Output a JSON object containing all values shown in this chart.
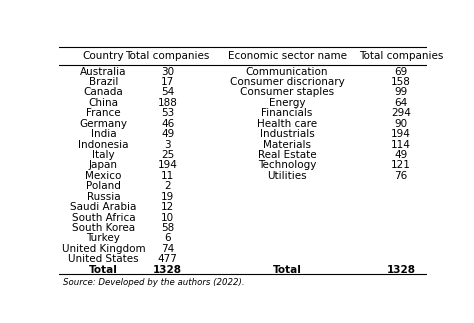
{
  "col1_header": [
    "Country",
    "Total companies"
  ],
  "col2_header": [
    "Economic sector name",
    "Total companies"
  ],
  "countries": [
    [
      "Australia",
      "30"
    ],
    [
      "Brazil",
      "17"
    ],
    [
      "Canada",
      "54"
    ],
    [
      "China",
      "188"
    ],
    [
      "France",
      "53"
    ],
    [
      "Germany",
      "46"
    ],
    [
      "India",
      "49"
    ],
    [
      "Indonesia",
      "3"
    ],
    [
      "Italy",
      "25"
    ],
    [
      "Japan",
      "194"
    ],
    [
      "Mexico",
      "11"
    ],
    [
      "Poland",
      "2"
    ],
    [
      "Russia",
      "19"
    ],
    [
      "Saudi Arabia",
      "12"
    ],
    [
      "South Africa",
      "10"
    ],
    [
      "South Korea",
      "58"
    ],
    [
      "Turkey",
      "6"
    ],
    [
      "United Kingdom",
      "74"
    ],
    [
      "United States",
      "477"
    ],
    [
      "Total",
      "1328"
    ]
  ],
  "sectors": [
    [
      "Communication",
      "69"
    ],
    [
      "Consumer discrionary",
      "158"
    ],
    [
      "Consumer staples",
      "99"
    ],
    [
      "Energy",
      "64"
    ],
    [
      "Financials",
      "294"
    ],
    [
      "Health care",
      "90"
    ],
    [
      "Industrials",
      "194"
    ],
    [
      "Materials",
      "114"
    ],
    [
      "Real Estate",
      "49"
    ],
    [
      "Technology",
      "121"
    ],
    [
      "Utilities",
      "76"
    ],
    [
      "",
      ""
    ],
    [
      "",
      ""
    ],
    [
      "",
      ""
    ],
    [
      "",
      ""
    ],
    [
      "",
      ""
    ],
    [
      "",
      ""
    ],
    [
      "",
      ""
    ],
    [
      "",
      ""
    ],
    [
      "Total",
      "1328"
    ]
  ],
  "source_text": "Source: Developed by the authors (2022).",
  "background_color": "#ffffff",
  "font_size": 7.5,
  "header_font_size": 7.5
}
